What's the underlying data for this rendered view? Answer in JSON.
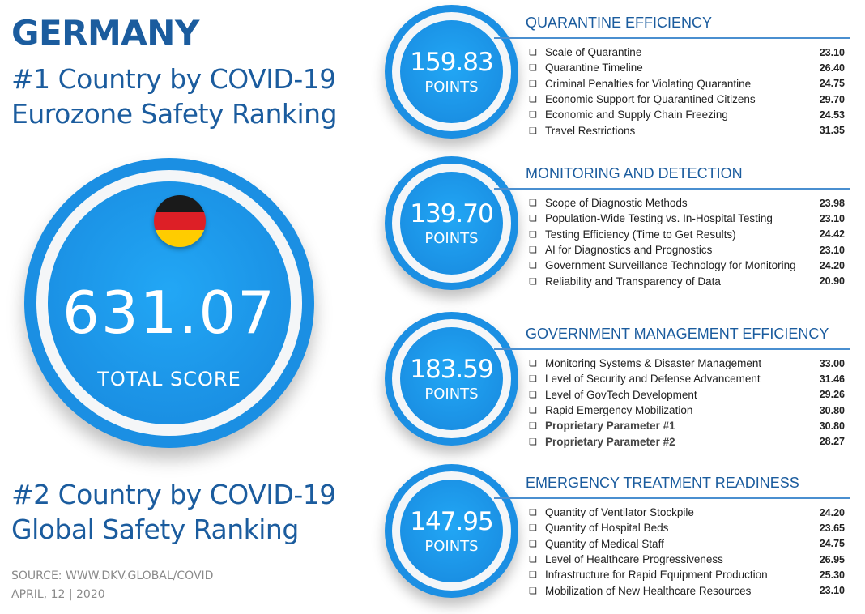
{
  "header": {
    "country": "GERMANY",
    "rank_line1": "#1 Country by COVID-19",
    "rank_line2": "Eurozone Safety Ranking"
  },
  "total": {
    "score": "631.07",
    "label": "TOTAL SCORE",
    "flag_colors": [
      "#1a1a1a",
      "#dd1f26",
      "#ffcc00"
    ]
  },
  "global": {
    "line1": "#2 Country by COVID-19",
    "line2": "Global Safety Ranking"
  },
  "footer": {
    "source": "SOURCE: WWW.DKV.GLOBAL/COVID",
    "date": "APRIL, 12 | 2020"
  },
  "sections": [
    {
      "title": "QUARANTINE EFFICIENCY",
      "points": "159.83",
      "points_label": "POINTS",
      "items": [
        {
          "label": "Scale of Quarantine",
          "value": "23.10"
        },
        {
          "label": "Quarantine Timeline",
          "value": "26.40"
        },
        {
          "label": "Criminal Penalties for Violating Quarantine",
          "value": "24.75"
        },
        {
          "label": "Economic Support for Quarantined Citizens",
          "value": "29.70"
        },
        {
          "label": "Economic and Supply Chain Freezing",
          "value": "24.53"
        },
        {
          "label": "Travel Restrictions",
          "value": "31.35"
        }
      ]
    },
    {
      "title": "MONITORING AND DETECTION",
      "points": "139.70",
      "points_label": "POINTS",
      "items": [
        {
          "label": "Scope of Diagnostic Methods",
          "value": "23.98"
        },
        {
          "label": "Population-Wide Testing vs. In-Hospital Testing",
          "value": "23.10"
        },
        {
          "label": "Testing Efficiency (Time to Get Results)",
          "value": "24.42"
        },
        {
          "label": "AI for Diagnostics and Prognostics",
          "value": "23.10"
        },
        {
          "label": "Government Surveillance Technology for Monitoring",
          "value": "24.20"
        },
        {
          "label": "Reliability and Transparency of Data",
          "value": "20.90"
        }
      ]
    },
    {
      "title": "GOVERNMENT MANAGEMENT EFFICIENCY",
      "points": "183.59",
      "points_label": "POINTS",
      "items": [
        {
          "label": "Monitoring Systems & Disaster Management",
          "value": "33.00"
        },
        {
          "label": "Level of Security and Defense Advancement",
          "value": "31.46"
        },
        {
          "label": "Level of GovTech Development",
          "value": "29.26"
        },
        {
          "label": "Rapid Emergency Mobilization",
          "value": "30.80"
        },
        {
          "label": "Proprietary Parameter #1",
          "value": "30.80",
          "bold": true
        },
        {
          "label": "Proprietary Parameter #2",
          "value": "28.27",
          "bold": true
        }
      ]
    },
    {
      "title": "EMERGENCY TREATMENT READINESS",
      "points": "147.95",
      "points_label": "POINTS",
      "items": [
        {
          "label": "Quantity of Ventilator Stockpile",
          "value": "24.20"
        },
        {
          "label": "Quantity of Hospital Beds",
          "value": "23.65"
        },
        {
          "label": "Quantity of Medical Staff",
          "value": "24.75"
        },
        {
          "label": "Level of Healthcare Progressiveness",
          "value": "26.95"
        },
        {
          "label": "Infrastructure for Rapid Equipment Production",
          "value": "25.30"
        },
        {
          "label": "Mobilization of New Healthcare Resources",
          "value": "23.10"
        }
      ]
    }
  ]
}
